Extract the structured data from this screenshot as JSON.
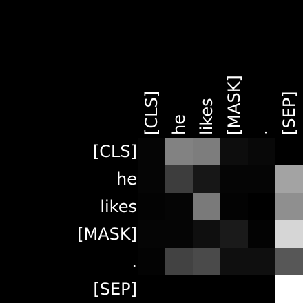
{
  "chart_data": {
    "type": "heatmap",
    "title": "",
    "xlabel": "",
    "ylabel": "",
    "colormap": "grayscale",
    "vmin": 0,
    "vmax": 1,
    "x_tokens": [
      "[CLS]",
      "he",
      "likes",
      "[MASK]",
      ".",
      "[SEP]"
    ],
    "y_tokens": [
      "[CLS]",
      "he",
      "likes",
      "[MASK]",
      ".",
      "[SEP]"
    ],
    "values": [
      [
        0.02,
        0.51,
        0.49,
        0.05,
        0.03,
        0.0
      ],
      [
        0.02,
        0.24,
        0.09,
        0.02,
        0.02,
        0.64
      ],
      [
        0.01,
        0.02,
        0.48,
        0.01,
        0.0,
        0.56
      ],
      [
        0.02,
        0.02,
        0.06,
        0.1,
        0.01,
        0.84
      ],
      [
        0.01,
        0.26,
        0.29,
        0.06,
        0.06,
        0.34
      ],
      [
        0.0,
        0.0,
        0.0,
        0.0,
        0.0,
        1.0
      ]
    ]
  }
}
